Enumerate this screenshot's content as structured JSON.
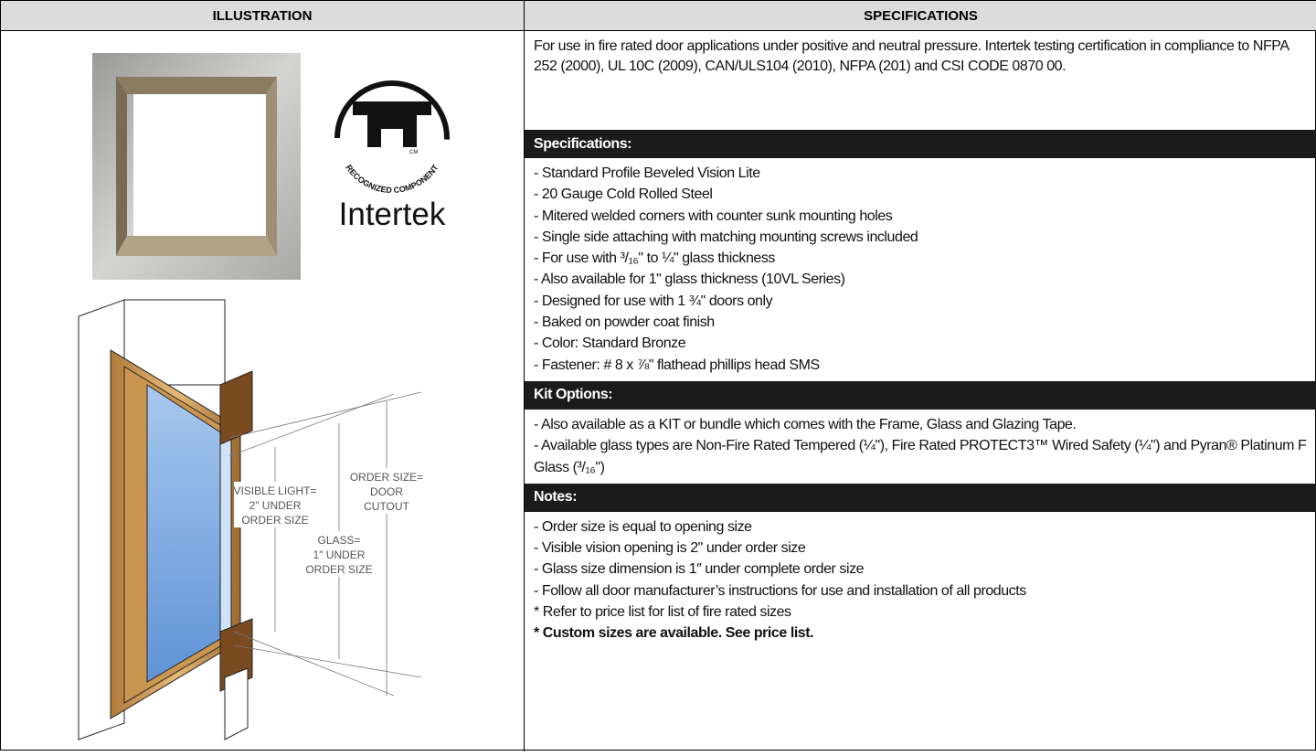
{
  "header": {
    "illustration": "ILLUSTRATION",
    "specifications": "SPECIFICATIONS"
  },
  "illustration": {
    "logo": {
      "arc_text": "RECOGNIZED COMPONENT",
      "mark": "CM",
      "brand": "Intertek"
    },
    "diagram": {
      "visible_light": [
        "VISIBLE LIGHT=",
        "2\" UNDER",
        "ORDER SIZE"
      ],
      "order_size": [
        "ORDER SIZE=",
        "DOOR",
        "CUTOUT"
      ],
      "glass": [
        "GLASS=",
        "1\" UNDER",
        "ORDER SIZE"
      ]
    }
  },
  "specifications": {
    "intro": "For use in fire rated door applications under positive and neutral pressure. Intertek testing certification in compliance to NFPA 252 (2000), UL 10C (2009), CAN/ULS104 (2010), NFPA (201) and CSI CODE 0870 00.",
    "sections": [
      {
        "title": "Specifications:",
        "items": [
          "- Standard Profile Beveled Vision Lite",
          "- 20 Gauge Cold Rolled Steel",
          "- Mitered welded corners with counter sunk mounting holes",
          "- Single side attaching with matching mounting screws  included",
          "- For use with ³/₁₆\" to ¼\" glass thickness",
          "- Also available for 1\" glass thickness (10VL Series)",
          "- Designed for use with 1 ¾\" doors only",
          "- Baked on powder coat finish",
          "- Color: Standard Bronze",
          "- Fastener: # 8 x ⅞\" flathead phillips head SMS"
        ]
      },
      {
        "title": "Kit Options:",
        "items": [
          "- Also available as a KIT or bundle which comes with the Frame, Glass and Glazing Tape.",
          "- Available glass types are Non-Fire Rated Tempered (¼\"), Fire Rated PROTECT3™ Wired Safety (¼\")  and Pyran® Platinum F Glass (³/₁₆\")"
        ]
      },
      {
        "title": "Notes:",
        "items": [
          "- Order size is equal to opening size",
          "- Visible vision opening is 2\" under order size",
          "- Glass size dimension is 1″ under complete order size",
          "- Follow all door manufacturer’s instructions for use and installation of all products",
          "* Refer to price list for list of fire rated sizes",
          "* Custom sizes are available. See price list."
        ]
      }
    ]
  }
}
